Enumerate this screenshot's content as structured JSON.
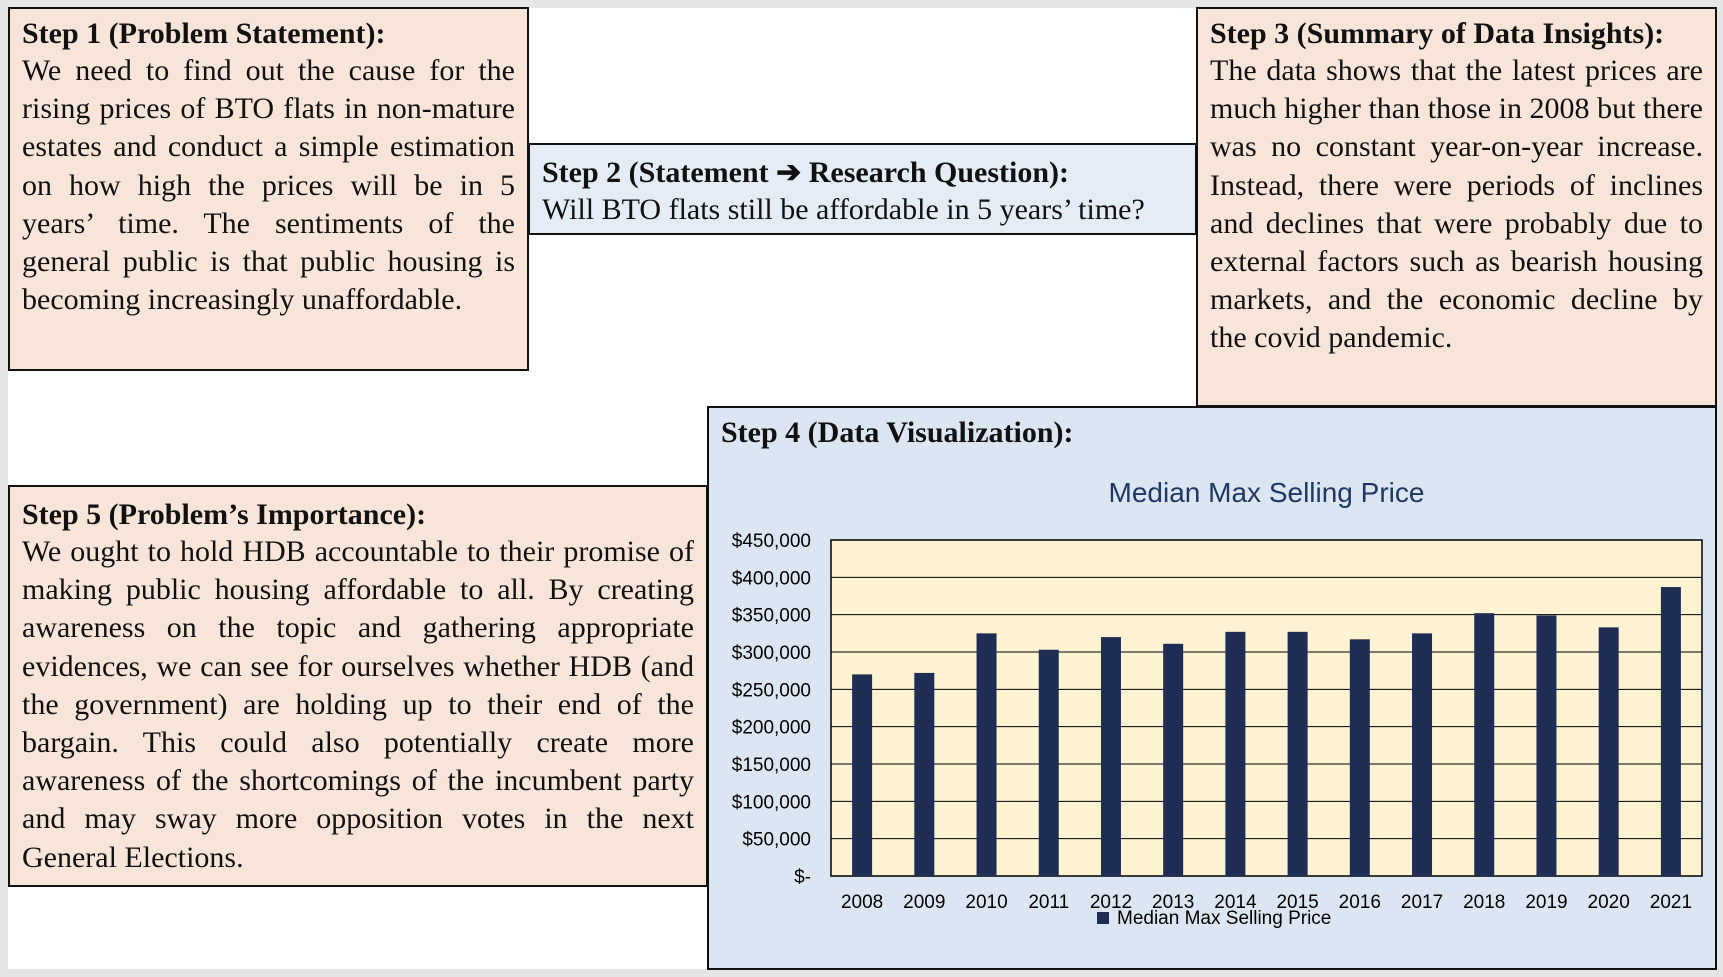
{
  "step1": {
    "title": "Step 1 (Problem Statement):",
    "body": "We need to find out the cause for the rising prices of BTO flats in non-mature estates and conduct a simple estimation on how high the prices will be in 5 years’ time. The sentiments of the general public is that public housing is becoming increasingly unaffordable."
  },
  "step2": {
    "title": "Step 2 (Statement ➔ Research Question):",
    "body": "Will BTO flats still be affordable in 5 years’ time?"
  },
  "step3": {
    "title": "Step 3 (Summary of Data Insights):",
    "body": "The data shows that the latest prices are much higher than those in 2008 but there was no constant year-on-year increase. Instead, there were periods of inclines and declines that were probably due to external factors such as bearish housing markets, and the economic decline by the covid pandemic."
  },
  "step4": {
    "title": "Step 4 (Data Visualization):"
  },
  "step5": {
    "title": "Step 5 (Problem’s Importance):",
    "body": "We ought to hold HDB accountable to their promise of making public housing affordable to all. By creating awareness on the topic and gathering appropriate evidences, we can see for ourselves whether HDB (and the government) are holding up to their end of the bargain. This could also potentially create more awareness of the shortcomings of the incumbent party and may sway more opposition votes in the next General Elections."
  },
  "chart_data": {
    "type": "bar",
    "title": "Median Max Selling Price",
    "categories": [
      "2008",
      "2009",
      "2010",
      "2011",
      "2012",
      "2013",
      "2014",
      "2015",
      "2016",
      "2017",
      "2018",
      "2019",
      "2020",
      "2021"
    ],
    "series": [
      {
        "name": "Median Max Selling Price",
        "values": [
          270000,
          272000,
          325000,
          303000,
          320000,
          311000,
          327000,
          327000,
          317000,
          325000,
          352000,
          349000,
          333000,
          387000
        ]
      }
    ],
    "ylim": [
      0,
      450000
    ],
    "yticks": [
      0,
      50000,
      100000,
      150000,
      200000,
      250000,
      300000,
      350000,
      400000,
      450000
    ],
    "ytick_labels": [
      "$-",
      "$50,000",
      "$100,000",
      "$150,000",
      "$200,000",
      "$250,000",
      "$300,000",
      "$350,000",
      "$400,000",
      "$450,000"
    ],
    "grid": true,
    "legend": "bottom",
    "colors": {
      "bar": "#1f2d55",
      "plot_bg": "#fdf3d3",
      "title": "#1f3864"
    }
  }
}
